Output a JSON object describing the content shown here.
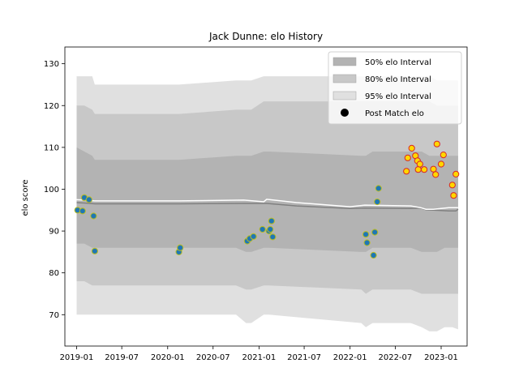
{
  "chart_data": {
    "type": "line",
    "title": "Jack Dunne: elo History",
    "xlabel": "",
    "ylabel": "elo score",
    "xlim": [
      "2018-11-15",
      "2023-04-15"
    ],
    "ylim": [
      62.5,
      134
    ],
    "x_ticks": [
      "2019-01",
      "2019-07",
      "2020-01",
      "2020-07",
      "2021-01",
      "2021-07",
      "2022-01",
      "2022-07",
      "2023-01"
    ],
    "y_ticks": [
      70,
      80,
      90,
      100,
      110,
      120,
      130
    ],
    "legend": {
      "position": "top-right",
      "entries": [
        {
          "label": "50% elo Interval",
          "color": "#b3b3b3"
        },
        {
          "label": "80% elo Interval",
          "color": "#c8c8c8"
        },
        {
          "label": "95% elo Interval",
          "color": "#e0e0e0"
        },
        {
          "label": "Post Match elo",
          "color": "#000000"
        }
      ]
    },
    "colors": {
      "band_50": "#b3b3b3",
      "band_80": "#c8c8c8",
      "band_95": "#e0e0e0",
      "mean_line": "#808080",
      "median_line": "#ffffff",
      "marker_blue_fill": "#1f77b4",
      "marker_blue_edge": "#bcbd22",
      "marker_red_fill": "#ffd700",
      "marker_red_edge": "#d62728"
    },
    "series": [
      {
        "role": "band",
        "level": "95",
        "x": [
          "2019-01-01",
          "2019-02-01",
          "2019-03-05",
          "2019-03-15",
          "2020-02-15",
          "2020-10-01",
          "2020-11-10",
          "2020-12-01",
          "2021-01-20",
          "2021-02-10",
          "2022-02-15",
          "2022-03-05",
          "2022-04-01",
          "2022-09-01",
          "2022-10-15",
          "2022-11-15",
          "2022-12-15",
          "2023-01-15",
          "2023-02-15",
          "2023-03-10"
        ],
        "lower": [
          70,
          70,
          70,
          70,
          70,
          70,
          68,
          68,
          70,
          70,
          68,
          67,
          68,
          68,
          67,
          66,
          66,
          67,
          67,
          66.5
        ],
        "upper": [
          127,
          127,
          127,
          125,
          125,
          126,
          126,
          126,
          127,
          127,
          127,
          127,
          127,
          127,
          127,
          127,
          126,
          126,
          126,
          126
        ]
      },
      {
        "role": "band",
        "level": "80",
        "x": [
          "2019-01-01",
          "2019-02-01",
          "2019-03-05",
          "2019-03-15",
          "2020-02-15",
          "2020-10-01",
          "2020-11-10",
          "2020-12-01",
          "2021-01-20",
          "2021-02-10",
          "2022-02-15",
          "2022-03-05",
          "2022-04-01",
          "2022-09-01",
          "2022-10-15",
          "2022-11-15",
          "2022-12-15",
          "2023-01-15",
          "2023-02-15",
          "2023-03-10"
        ],
        "lower": [
          78,
          78,
          77,
          77,
          77,
          77,
          76,
          76,
          77,
          77,
          76,
          75,
          76,
          76,
          75,
          75,
          75,
          75,
          75,
          75
        ],
        "upper": [
          120,
          120,
          119,
          118,
          118,
          119,
          119,
          119,
          121,
          121,
          121,
          121,
          121,
          121,
          121,
          121,
          120,
          120,
          120,
          120
        ]
      },
      {
        "role": "band",
        "level": "50",
        "x": [
          "2019-01-01",
          "2019-02-01",
          "2019-03-05",
          "2019-03-15",
          "2020-02-15",
          "2020-10-01",
          "2020-11-10",
          "2020-12-01",
          "2021-01-20",
          "2021-02-10",
          "2022-02-15",
          "2022-03-05",
          "2022-04-01",
          "2022-09-01",
          "2022-10-15",
          "2022-11-15",
          "2022-12-15",
          "2023-01-15",
          "2023-02-15",
          "2023-03-10"
        ],
        "lower": [
          87,
          87,
          86,
          86,
          86,
          86,
          85,
          85,
          86,
          86,
          85,
          85,
          86,
          86,
          85,
          85,
          85,
          86,
          86,
          86
        ],
        "upper": [
          110,
          109,
          108,
          107,
          107,
          108,
          108,
          108,
          109,
          109,
          108,
          108,
          109,
          109,
          109,
          108,
          108,
          108,
          108,
          108
        ]
      },
      {
        "role": "mean",
        "x": [
          "2019-01-01",
          "2019-02-01",
          "2019-03-15",
          "2020-02-15",
          "2020-11-01",
          "2021-02-01",
          "2021-06-01",
          "2022-01-01",
          "2022-03-01",
          "2022-09-01",
          "2022-10-10",
          "2022-11-01",
          "2022-12-01",
          "2023-02-01",
          "2023-03-01",
          "2023-03-10"
        ],
        "y": [
          96.8,
          96.7,
          96.5,
          96.5,
          96.6,
          96.6,
          96.0,
          95.4,
          95.5,
          95.4,
          95.5,
          95.1,
          95.0,
          94.8,
          94.8,
          95.2
        ]
      },
      {
        "role": "median",
        "x": [
          "2019-01-01",
          "2019-02-01",
          "2019-03-15",
          "2020-02-15",
          "2020-11-01",
          "2021-01-20",
          "2021-02-01",
          "2021-06-01",
          "2022-01-01",
          "2022-03-01",
          "2022-09-01",
          "2022-10-10",
          "2022-11-01",
          "2022-12-01",
          "2023-02-01",
          "2023-03-10"
        ],
        "y": [
          97.5,
          97.4,
          97.2,
          97.2,
          97.4,
          97.0,
          97.6,
          96.8,
          95.8,
          96.2,
          96.0,
          95.6,
          95.2,
          95.2,
          95.6,
          95.6
        ]
      },
      {
        "role": "points",
        "label": "Post Match elo",
        "color_group": "blue",
        "x": [
          "2019-01-05",
          "2019-01-25",
          "2019-02-01",
          "2019-02-20",
          "2019-03-10",
          "2019-03-15",
          "2020-02-15",
          "2020-02-20",
          "2020-11-15",
          "2020-11-25",
          "2020-12-10",
          "2021-01-15",
          "2021-02-10",
          "2021-02-15",
          "2021-02-20",
          "2021-02-25",
          "2022-03-05",
          "2022-03-10",
          "2022-04-05",
          "2022-04-10",
          "2022-04-20",
          "2022-04-25"
        ],
        "y": [
          95.0,
          94.8,
          98.0,
          97.5,
          93.6,
          85.2,
          85.0,
          86.0,
          87.6,
          88.2,
          88.7,
          90.4,
          90.0,
          90.4,
          92.4,
          88.6,
          89.2,
          87.2,
          84.2,
          89.7,
          97.0,
          100.2
        ]
      },
      {
        "role": "points",
        "label": "Post Match elo",
        "color_group": "red",
        "x": [
          "2022-08-15",
          "2022-08-20",
          "2022-09-05",
          "2022-09-20",
          "2022-09-28",
          "2022-10-01",
          "2022-10-08",
          "2022-10-25",
          "2022-12-01",
          "2022-12-10",
          "2022-12-15",
          "2023-01-01",
          "2023-01-10",
          "2023-02-15",
          "2023-02-20",
          "2023-03-01"
        ],
        "y": [
          104.3,
          107.5,
          109.8,
          108.0,
          106.8,
          104.7,
          106.0,
          104.7,
          104.8,
          103.5,
          110.8,
          106.0,
          108.2,
          101.0,
          98.5,
          103.6
        ]
      }
    ]
  }
}
